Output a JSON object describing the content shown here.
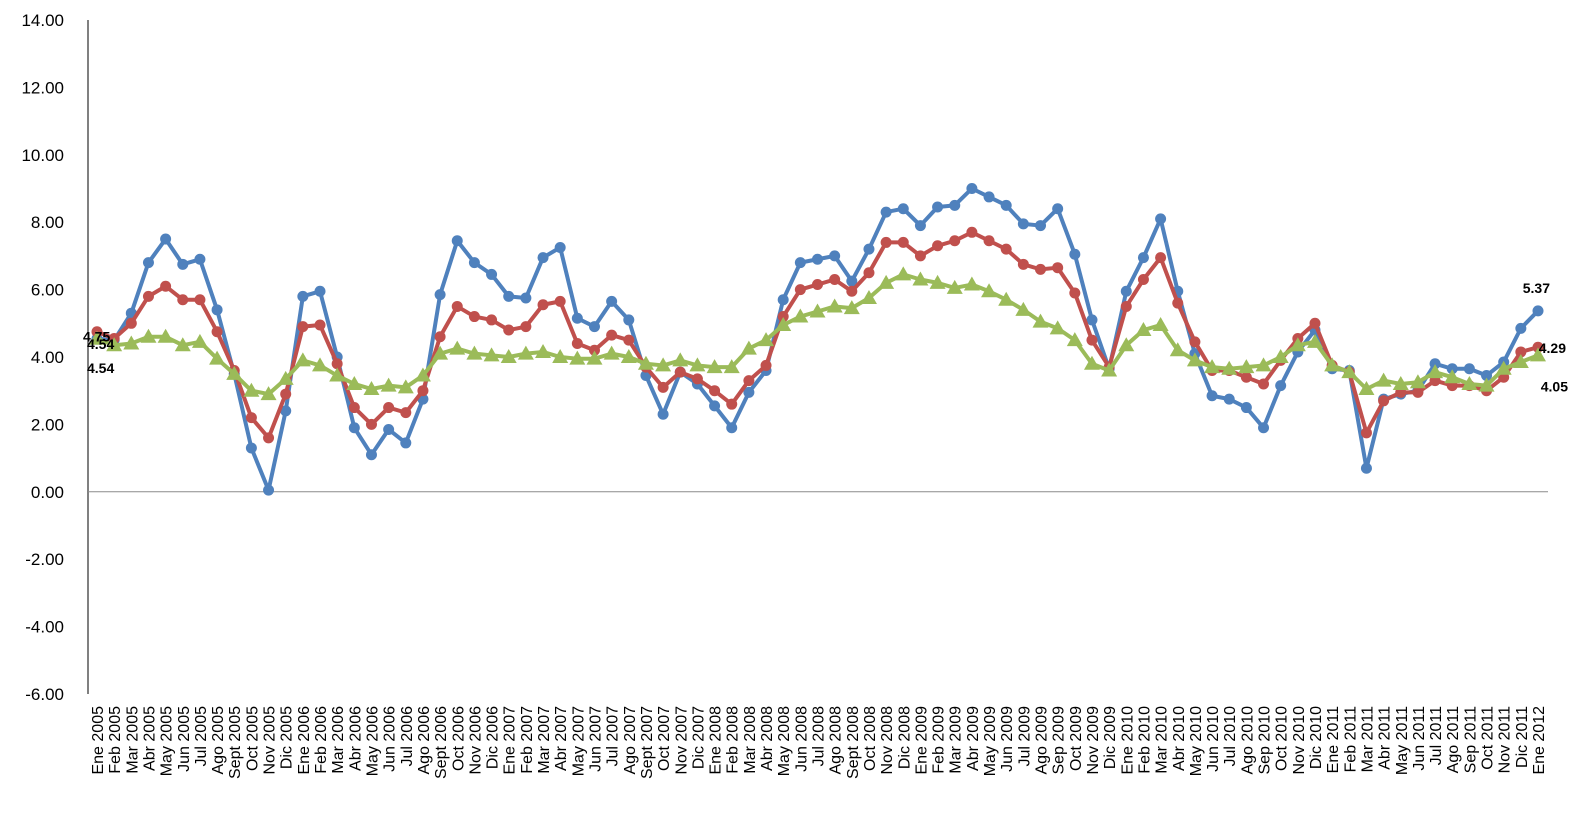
{
  "chart_data": {
    "type": "line",
    "title": "",
    "xlabel": "",
    "ylabel": "",
    "ylim": [
      -6,
      14
    ],
    "yticks": [
      "14.00",
      "12.00",
      "10.00",
      "8.00",
      "6.00",
      "4.00",
      "2.00",
      "0.00",
      "-2.00",
      "-4.00",
      "-6.00"
    ],
    "grid": false,
    "legend": "none",
    "categories": [
      "Ene 2005",
      "Feb 2005",
      "Mar 2005",
      "Abr 2005",
      "May 2005",
      "Jun 2005",
      "Jul 2005",
      "Ago 2005",
      "Sept 2005",
      "Oct 2005",
      "Nov 2005",
      "Dic 2005",
      "Ene 2006",
      "Feb 2006",
      "Mar 2006",
      "Abr 2006",
      "May 2006",
      "Jun 2006",
      "Jul 2006",
      "Ago 2006",
      "Sept 2006",
      "Oct 2006",
      "Nov 2006",
      "Dic 2006",
      "Ene 2007",
      "Feb 2007",
      "Mar 2007",
      "Abr 2007",
      "May 2007",
      "Jun 2007",
      "Jul 2007",
      "Ago 2007",
      "Sept 2007",
      "Oct 2007",
      "Nov 2007",
      "Dic 2007",
      "Ene 2008",
      "Feb 2008",
      "Mar 2008",
      "Abr 2008",
      "May 2008",
      "Jun 2008",
      "Jul 2008",
      "Ago 2008",
      "Sept 2008",
      "Oct 2008",
      "Nov 2008",
      "Dic 2008",
      "Ene 2009",
      "Feb 2009",
      "Mar 2009",
      "Abr 2009",
      "May 2009",
      "Jun 2009",
      "Jul 2009",
      "Ago 2009",
      "Sep 2009",
      "Oct 2009",
      "Nov 2009",
      "Dic 2009",
      "Ene 2010",
      "Feb 2010",
      "Mar 2010",
      "Abr 2010",
      "May 2010",
      "Jun 2010",
      "Jul 2010",
      "Ago 2010",
      "Sep 2010",
      "Oct 2010",
      "Nov 2010",
      "Dic 2010",
      "Ene 2011",
      "Feb 2011",
      "Mar 2011",
      "Abr 2011",
      "May 2011",
      "Jun 2011",
      "Jul 2011",
      "Ago 2011",
      "Sep 2011",
      "Oct 2011",
      "Nov 2011",
      "Dic 2011",
      "Ene 2012"
    ],
    "series": [
      {
        "color": "#4f81bd",
        "marker": "circle",
        "values": [
          4.54,
          4.5,
          5.3,
          6.8,
          7.5,
          6.75,
          6.9,
          5.4,
          3.5,
          1.3,
          0.05,
          2.4,
          5.8,
          5.95,
          4.0,
          1.9,
          1.1,
          1.85,
          1.45,
          2.75,
          5.85,
          7.45,
          6.8,
          6.45,
          5.8,
          5.75,
          6.95,
          7.25,
          5.15,
          4.9,
          5.65,
          5.1,
          3.45,
          2.3,
          3.55,
          3.2,
          2.55,
          1.9,
          2.95,
          3.6,
          5.7,
          6.8,
          6.9,
          7.0,
          6.25,
          7.2,
          8.3,
          8.4,
          7.9,
          8.45,
          8.5,
          9.0,
          8.75,
          8.5,
          7.95,
          7.9,
          8.4,
          7.05,
          5.1,
          3.65,
          5.95,
          6.95,
          8.1,
          5.95,
          4.1,
          2.85,
          2.75,
          2.5,
          1.9,
          3.15,
          4.15,
          4.8,
          3.65,
          3.6,
          0.7,
          2.75,
          2.9,
          3.0,
          3.8,
          3.65,
          3.65,
          3.45,
          3.85,
          4.85,
          5.37
        ]
      },
      {
        "color": "#c0504d",
        "marker": "circle",
        "values": [
          4.75,
          4.55,
          5.0,
          5.8,
          6.1,
          5.7,
          5.7,
          4.75,
          3.6,
          2.2,
          1.6,
          2.9,
          4.9,
          4.95,
          3.8,
          2.5,
          2.0,
          2.5,
          2.35,
          3.0,
          4.6,
          5.5,
          5.2,
          5.1,
          4.8,
          4.9,
          5.55,
          5.65,
          4.4,
          4.2,
          4.65,
          4.5,
          3.7,
          3.1,
          3.55,
          3.35,
          3.0,
          2.6,
          3.3,
          3.75,
          5.2,
          6.0,
          6.15,
          6.3,
          5.95,
          6.5,
          7.4,
          7.4,
          7.0,
          7.3,
          7.45,
          7.7,
          7.45,
          7.2,
          6.75,
          6.6,
          6.65,
          5.9,
          4.5,
          3.7,
          5.5,
          6.3,
          6.95,
          5.6,
          4.45,
          3.6,
          3.6,
          3.4,
          3.2,
          3.9,
          4.55,
          5.0,
          3.75,
          3.55,
          1.75,
          2.7,
          2.95,
          2.95,
          3.3,
          3.15,
          3.15,
          3.0,
          3.4,
          4.15,
          4.29
        ]
      },
      {
        "color": "#9bbb59",
        "marker": "triangle",
        "values": [
          4.54,
          4.35,
          4.4,
          4.6,
          4.6,
          4.35,
          4.45,
          3.95,
          3.5,
          3.0,
          2.9,
          3.35,
          3.9,
          3.75,
          3.45,
          3.2,
          3.05,
          3.15,
          3.1,
          3.45,
          4.1,
          4.25,
          4.1,
          4.05,
          4.0,
          4.1,
          4.15,
          4.0,
          3.95,
          3.95,
          4.1,
          4.0,
          3.8,
          3.75,
          3.9,
          3.75,
          3.7,
          3.7,
          4.25,
          4.5,
          4.95,
          5.2,
          5.35,
          5.5,
          5.45,
          5.75,
          6.2,
          6.45,
          6.3,
          6.2,
          6.05,
          6.15,
          5.95,
          5.7,
          5.4,
          5.05,
          4.85,
          4.5,
          3.8,
          3.6,
          4.35,
          4.8,
          4.95,
          4.2,
          3.9,
          3.7,
          3.65,
          3.7,
          3.75,
          4.0,
          4.35,
          4.45,
          3.75,
          3.55,
          3.05,
          3.3,
          3.2,
          3.25,
          3.55,
          3.4,
          3.2,
          3.15,
          3.65,
          3.85,
          4.05
        ]
      }
    ],
    "annotations": [
      {
        "series": 0,
        "index": 0,
        "text": "4.54"
      },
      {
        "series": 1,
        "index": 0,
        "text": "4.75"
      },
      {
        "series": 2,
        "index": 0,
        "text": "4.54"
      },
      {
        "series": 0,
        "index": 84,
        "text": "5.37"
      },
      {
        "series": 1,
        "index": 84,
        "text": "4.29"
      },
      {
        "series": 2,
        "index": 84,
        "text": "4.05"
      }
    ]
  }
}
